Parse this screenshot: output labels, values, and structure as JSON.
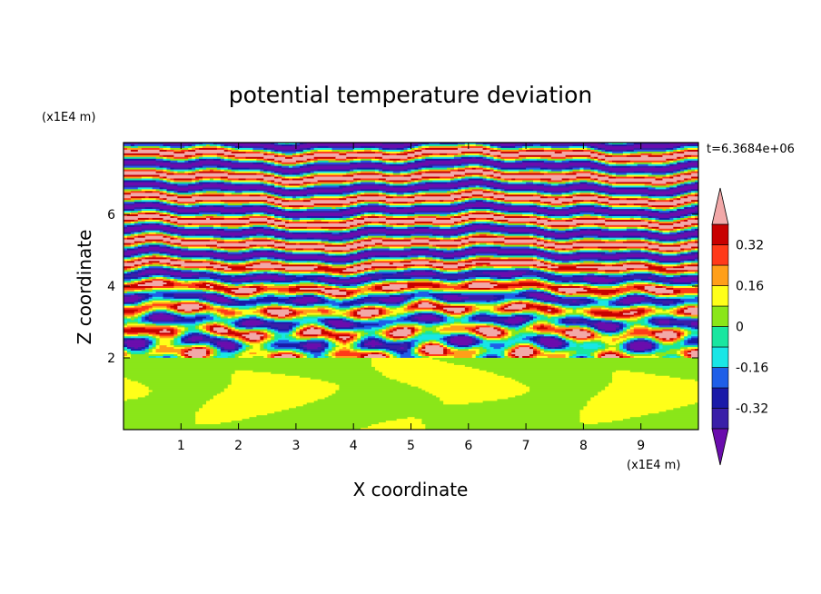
{
  "chart_data": {
    "type": "heatmap",
    "title": "potential temperature deviation",
    "xlabel": "X coordinate",
    "ylabel": "Z coordinate",
    "x_unit": "(x1E4 m)",
    "z_unit": "(x1E4 m)",
    "time_label": "t=6.3684e+06",
    "xlim": [
      0,
      10
    ],
    "zlim": [
      0,
      8
    ],
    "x_ticks": [
      "1",
      "2",
      "3",
      "4",
      "5",
      "6",
      "7",
      "8",
      "9"
    ],
    "z_ticks": [
      "2",
      "4",
      "6"
    ],
    "x_tick_values": [
      1,
      2,
      3,
      4,
      5,
      6,
      7,
      8,
      9
    ],
    "z_tick_values": [
      2,
      4,
      6
    ],
    "colorbar": {
      "levels": [
        -0.4,
        -0.32,
        -0.24,
        -0.16,
        -0.08,
        0,
        0.08,
        0.16,
        0.24,
        0.32,
        0.4
      ],
      "colors": [
        "#6a0dad",
        "#3a1fa8",
        "#1a1aa8",
        "#1f5fe8",
        "#19e6e6",
        "#19e6a0",
        "#8ae619",
        "#ffff19",
        "#ff9f19",
        "#ff3a19",
        "#c80000",
        "#f2a8a8"
      ],
      "tick_labels": [
        "0.32",
        "0.16",
        "0",
        "-0.16",
        "-0.32"
      ],
      "tick_values": [
        0.32,
        0.16,
        0,
        -0.16,
        -0.32
      ],
      "extend": "both"
    },
    "structure": {
      "lower_layer_top_z": 2.0,
      "lower_layer_values": "near 0 (green / yellow-green mottled)",
      "upper_layer": "alternating horizontal bands of about +0.4 and -0.4 with turbulent mixing between z=2 and z=5"
    }
  }
}
